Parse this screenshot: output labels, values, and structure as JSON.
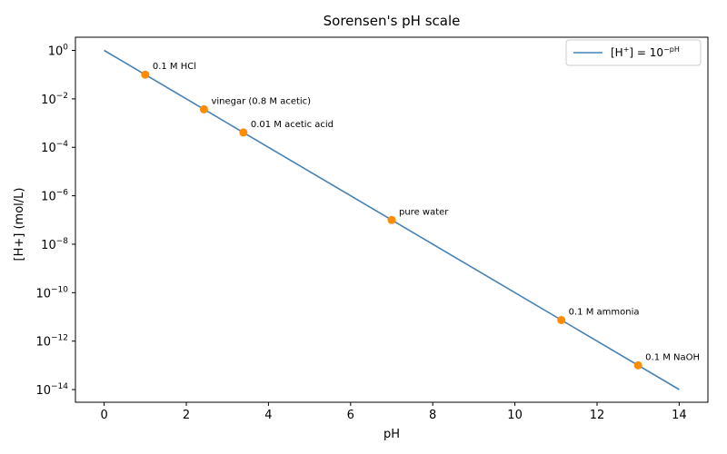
{
  "chart_data": {
    "type": "line",
    "title": "Sorensen's pH scale",
    "xlabel": "pH",
    "ylabel": "[H+] (mol/L)",
    "x_scale": "linear",
    "y_scale": "log",
    "xlim": [
      -0.7,
      14.7
    ],
    "ylim": [
      3e-15,
      3.5
    ],
    "x_ticks": [
      0,
      2,
      4,
      6,
      8,
      10,
      12,
      14
    ],
    "y_tick_exponents": [
      0,
      -2,
      -4,
      -6,
      -8,
      -10,
      -12,
      -14
    ],
    "grid": false,
    "legend_position": "top-right",
    "series": [
      {
        "name": "[H⁺] = 10⁻ᵖᴴ",
        "legend_main": "[H",
        "legend_sup1": "+",
        "legend_mid": "] = 10",
        "legend_sup2": "−pH",
        "color": "#4682b4",
        "x": [
          0,
          14
        ],
        "y": [
          1,
          1e-14
        ]
      }
    ],
    "points": {
      "color": "#ff8c00",
      "items": [
        {
          "label": "0.1 M HCl",
          "x": 1.0,
          "y": 0.1
        },
        {
          "label": "vinegar (0.8 M acetic)",
          "x": 2.43,
          "y": 0.0037
        },
        {
          "label": "0.01 M acetic acid",
          "x": 3.39,
          "y": 0.00041
        },
        {
          "label": "pure water",
          "x": 7.0,
          "y": 1e-07
        },
        {
          "label": "0.1 M ammonia",
          "x": 11.13,
          "y": 7.4e-12
        },
        {
          "label": "0.1 M NaOH",
          "x": 13.0,
          "y": 1e-13
        }
      ]
    }
  }
}
